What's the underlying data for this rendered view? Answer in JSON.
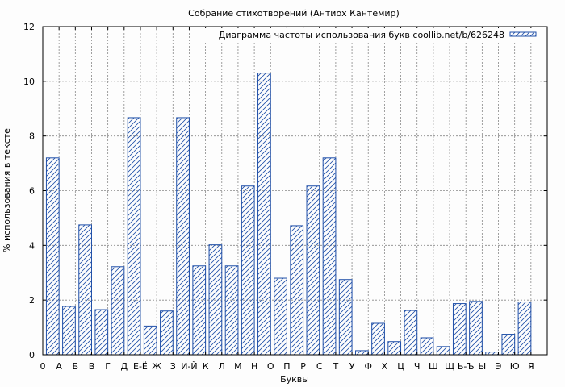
{
  "chart_data": {
    "type": "bar",
    "title": "Собрание стихотворений (Антиох Кантемир)",
    "xlabel": "Буквы",
    "ylabel": "% использования в тексте",
    "x_first_tick": "0",
    "categories": [
      "А",
      "Б",
      "В",
      "Г",
      "Д",
      "Е-Ё",
      "Ж",
      "З",
      "И-Й",
      "К",
      "Л",
      "М",
      "Н",
      "О",
      "П",
      "Р",
      "С",
      "Т",
      "У",
      "Ф",
      "Х",
      "Ц",
      "Ч",
      "Ш",
      "Щ",
      "Ь-Ъ",
      "Ы",
      "Э",
      "Ю",
      "Я"
    ],
    "series": [
      {
        "name": "Диаграмма частоты использования букв coollib.net/b/626248",
        "values": [
          7.2,
          1.77,
          4.75,
          1.65,
          3.22,
          8.67,
          1.05,
          1.6,
          8.67,
          3.25,
          4.02,
          3.25,
          6.17,
          10.3,
          2.8,
          4.72,
          6.17,
          7.2,
          2.75,
          0.15,
          1.15,
          0.48,
          1.62,
          0.62,
          0.3,
          1.87,
          1.95,
          0.1,
          0.75,
          1.93
        ]
      }
    ],
    "ylim": [
      0,
      12
    ],
    "yticks": [
      0,
      2,
      4,
      6,
      8,
      10,
      12
    ],
    "grid": true,
    "legend_position": "top-right",
    "bar_color": "#1f4fa8"
  }
}
